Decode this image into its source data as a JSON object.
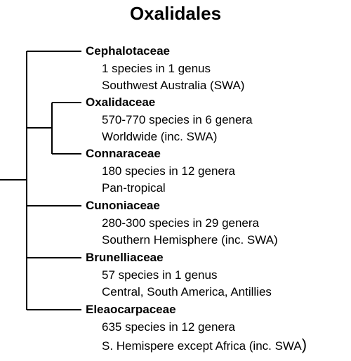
{
  "title": "Oxalidales",
  "families": [
    {
      "name": "Cephalotaceae",
      "species": "1 species in 1 genus",
      "range": "Southwest Australia (SWA)"
    },
    {
      "name": "Oxalidaceae",
      "species": "570-770 species in 6 genera",
      "range": "Worldwide (inc. SWA)"
    },
    {
      "name": "Connaraceae",
      "species": "180 species in 12 genera",
      "range": "Pan-tropical"
    },
    {
      "name": "Cunoniaceae",
      "species": "280-300 species in 29 genera",
      "range": "Southern Hemisphere (inc. SWA)"
    },
    {
      "name": "Brunelliaceae",
      "species": "57 species in 1 genus",
      "range": "Central, South America, Antillies"
    },
    {
      "name": "Eleaocarpaceae",
      "species": "635 species in 12 genera",
      "range": "S. Hemispere except Africa (inc. SWA",
      "range_end": ")"
    }
  ]
}
